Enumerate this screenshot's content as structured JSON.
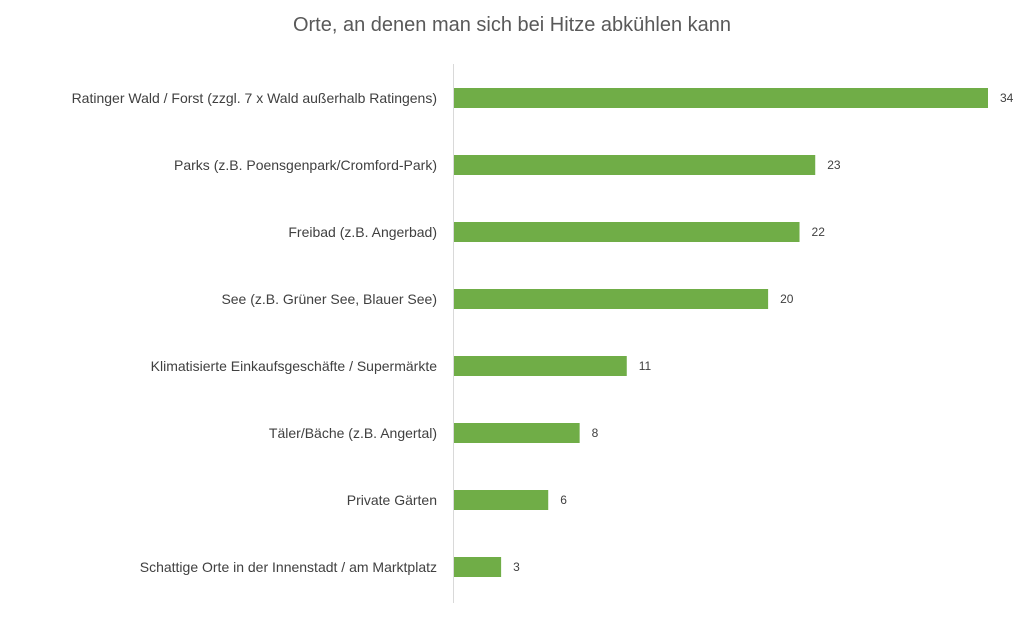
{
  "chart_data": {
    "type": "bar",
    "orientation": "horizontal",
    "title": "Orte, an denen man sich bei Hitze abkühlen kann",
    "categories": [
      "Ratinger Wald / Forst (zzgl. 7 x Wald außerhalb Ratingens)",
      "Parks (z.B. Poensgenpark/Cromford-Park)",
      "Freibad (z.B. Angerbad)",
      "See (z.B. Grüner See, Blauer See)",
      "Klimatisierte Einkaufsgeschäfte / Supermärkte",
      "Täler/Bäche (z.B. Angertal)",
      "Private Gärten",
      "Schattige Orte in der Innenstadt / am Marktplatz"
    ],
    "values": [
      34,
      23,
      22,
      20,
      11,
      8,
      6,
      3
    ],
    "xlabel": "",
    "ylabel": "",
    "xlim": [
      0,
      34
    ],
    "grid": false,
    "legend": "none",
    "bar_color": "#70AD47"
  }
}
